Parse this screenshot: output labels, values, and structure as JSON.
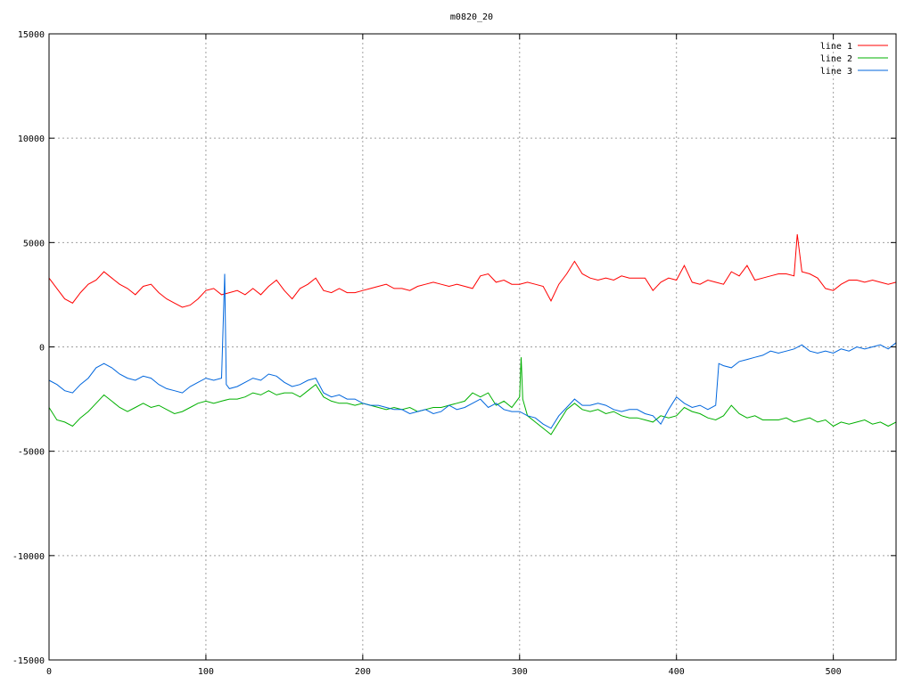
{
  "chart_data": {
    "type": "line",
    "title": "m0820_20",
    "xlim": [
      0,
      540
    ],
    "ylim": [
      -15000,
      15000
    ],
    "x_ticks": [
      0,
      100,
      200,
      300,
      400,
      500
    ],
    "y_ticks": [
      -15000,
      -10000,
      -5000,
      0,
      5000,
      10000,
      15000
    ],
    "grid": true,
    "legend_position": "top-right",
    "series": [
      {
        "name": "line 1",
        "color": "#ff0000",
        "x": [
          0,
          5,
          10,
          15,
          20,
          25,
          30,
          35,
          40,
          45,
          50,
          55,
          60,
          65,
          70,
          75,
          80,
          85,
          90,
          95,
          100,
          105,
          110,
          115,
          120,
          125,
          130,
          135,
          140,
          145,
          150,
          155,
          160,
          165,
          170,
          175,
          180,
          185,
          190,
          195,
          200,
          205,
          210,
          215,
          220,
          225,
          230,
          235,
          240,
          245,
          250,
          255,
          260,
          265,
          270,
          275,
          280,
          285,
          290,
          295,
          300,
          305,
          310,
          315,
          320,
          325,
          330,
          335,
          340,
          345,
          350,
          355,
          360,
          365,
          370,
          375,
          380,
          385,
          390,
          395,
          400,
          405,
          410,
          415,
          420,
          425,
          430,
          435,
          440,
          445,
          450,
          455,
          460,
          465,
          470,
          475,
          477,
          480,
          485,
          490,
          495,
          500,
          505,
          510,
          515,
          520,
          525,
          530,
          535,
          540
        ],
        "y": [
          3300,
          2800,
          2300,
          2100,
          2600,
          3000,
          3200,
          3600,
          3300,
          3000,
          2800,
          2500,
          2900,
          3000,
          2600,
          2300,
          2100,
          1900,
          2000,
          2300,
          2700,
          2800,
          2500,
          2600,
          2700,
          2500,
          2800,
          2500,
          2900,
          3200,
          2700,
          2300,
          2800,
          3000,
          3300,
          2700,
          2600,
          2800,
          2600,
          2600,
          2700,
          2800,
          2900,
          3000,
          2800,
          2800,
          2700,
          2900,
          3000,
          3100,
          3000,
          2900,
          3000,
          2900,
          2800,
          3400,
          3500,
          3100,
          3200,
          3000,
          3000,
          3100,
          3000,
          2900,
          2200,
          3000,
          3500,
          4100,
          3500,
          3300,
          3200,
          3300,
          3200,
          3400,
          3300,
          3300,
          3300,
          2700,
          3100,
          3300,
          3200,
          3900,
          3100,
          3000,
          3200,
          3100,
          3000,
          3600,
          3400,
          3900,
          3200,
          3300,
          3400,
          3500,
          3500,
          3400,
          5400,
          3600,
          3500,
          3300,
          2800,
          2700,
          3000,
          3200,
          3200,
          3100,
          3200,
          3100,
          3000,
          3100
        ]
      },
      {
        "name": "line 2",
        "color": "#00b000",
        "x": [
          0,
          5,
          10,
          15,
          20,
          25,
          30,
          35,
          40,
          45,
          50,
          55,
          60,
          65,
          70,
          75,
          80,
          85,
          90,
          95,
          100,
          105,
          110,
          115,
          120,
          125,
          130,
          135,
          140,
          145,
          150,
          155,
          160,
          165,
          170,
          175,
          180,
          185,
          190,
          195,
          200,
          205,
          210,
          215,
          220,
          225,
          230,
          235,
          240,
          245,
          250,
          255,
          260,
          265,
          270,
          275,
          280,
          285,
          290,
          295,
          300,
          301,
          302,
          305,
          310,
          315,
          320,
          325,
          330,
          335,
          340,
          345,
          350,
          355,
          360,
          365,
          370,
          375,
          380,
          385,
          390,
          395,
          400,
          405,
          410,
          415,
          420,
          425,
          430,
          435,
          440,
          445,
          450,
          455,
          460,
          465,
          470,
          475,
          480,
          485,
          490,
          495,
          500,
          505,
          510,
          515,
          520,
          525,
          530,
          535,
          540
        ],
        "y": [
          -2900,
          -3500,
          -3600,
          -3800,
          -3400,
          -3100,
          -2700,
          -2300,
          -2600,
          -2900,
          -3100,
          -2900,
          -2700,
          -2900,
          -2800,
          -3000,
          -3200,
          -3100,
          -2900,
          -2700,
          -2600,
          -2700,
          -2600,
          -2500,
          -2500,
          -2400,
          -2200,
          -2300,
          -2100,
          -2300,
          -2200,
          -2200,
          -2400,
          -2100,
          -1800,
          -2400,
          -2600,
          -2700,
          -2700,
          -2800,
          -2700,
          -2800,
          -2900,
          -3000,
          -2900,
          -3000,
          -2900,
          -3100,
          -3000,
          -2900,
          -2900,
          -2800,
          -2700,
          -2600,
          -2200,
          -2400,
          -2200,
          -2800,
          -2600,
          -2900,
          -2400,
          -500,
          -2500,
          -3300,
          -3600,
          -3900,
          -4200,
          -3600,
          -3000,
          -2700,
          -3000,
          -3100,
          -3000,
          -3200,
          -3100,
          -3300,
          -3400,
          -3400,
          -3500,
          -3600,
          -3300,
          -3400,
          -3300,
          -2900,
          -3100,
          -3200,
          -3400,
          -3500,
          -3300,
          -2800,
          -3200,
          -3400,
          -3300,
          -3500,
          -3500,
          -3500,
          -3400,
          -3600,
          -3500,
          -3400,
          -3600,
          -3500,
          -3800,
          -3600,
          -3700,
          -3600,
          -3500,
          -3700,
          -3600,
          -3800,
          -3600
        ]
      },
      {
        "name": "line 3",
        "color": "#0066dd",
        "x": [
          0,
          5,
          10,
          15,
          20,
          25,
          30,
          35,
          40,
          45,
          50,
          55,
          60,
          65,
          70,
          75,
          80,
          85,
          90,
          95,
          100,
          105,
          110,
          112,
          113,
          115,
          120,
          125,
          130,
          135,
          140,
          145,
          150,
          155,
          160,
          165,
          170,
          175,
          180,
          185,
          190,
          195,
          200,
          205,
          210,
          215,
          220,
          225,
          230,
          235,
          240,
          245,
          250,
          255,
          260,
          265,
          270,
          275,
          280,
          285,
          290,
          295,
          300,
          305,
          310,
          315,
          320,
          325,
          330,
          335,
          340,
          345,
          350,
          355,
          360,
          365,
          370,
          375,
          380,
          385,
          390,
          395,
          400,
          405,
          410,
          415,
          420,
          425,
          427,
          430,
          435,
          440,
          445,
          450,
          455,
          460,
          465,
          470,
          475,
          480,
          485,
          490,
          495,
          500,
          505,
          510,
          515,
          520,
          525,
          530,
          535,
          540
        ],
        "y": [
          -1600,
          -1800,
          -2100,
          -2200,
          -1800,
          -1500,
          -1000,
          -800,
          -1000,
          -1300,
          -1500,
          -1600,
          -1400,
          -1500,
          -1800,
          -2000,
          -2100,
          -2200,
          -1900,
          -1700,
          -1500,
          -1600,
          -1500,
          3500,
          -1800,
          -2000,
          -1900,
          -1700,
          -1500,
          -1600,
          -1300,
          -1400,
          -1700,
          -1900,
          -1800,
          -1600,
          -1500,
          -2200,
          -2400,
          -2300,
          -2500,
          -2500,
          -2700,
          -2800,
          -2800,
          -2900,
          -3000,
          -3000,
          -3200,
          -3100,
          -3000,
          -3200,
          -3100,
          -2800,
          -3000,
          -2900,
          -2700,
          -2500,
          -2900,
          -2700,
          -3000,
          -3100,
          -3100,
          -3300,
          -3400,
          -3700,
          -3900,
          -3300,
          -2900,
          -2500,
          -2800,
          -2800,
          -2700,
          -2800,
          -3000,
          -3100,
          -3000,
          -3000,
          -3200,
          -3300,
          -3700,
          -3000,
          -2400,
          -2700,
          -2900,
          -2800,
          -3000,
          -2800,
          -800,
          -900,
          -1000,
          -700,
          -600,
          -500,
          -400,
          -200,
          -300,
          -200,
          -100,
          100,
          -200,
          -300,
          -200,
          -300,
          -100,
          -200,
          0,
          -100,
          0,
          100,
          -100,
          200
        ]
      }
    ]
  }
}
